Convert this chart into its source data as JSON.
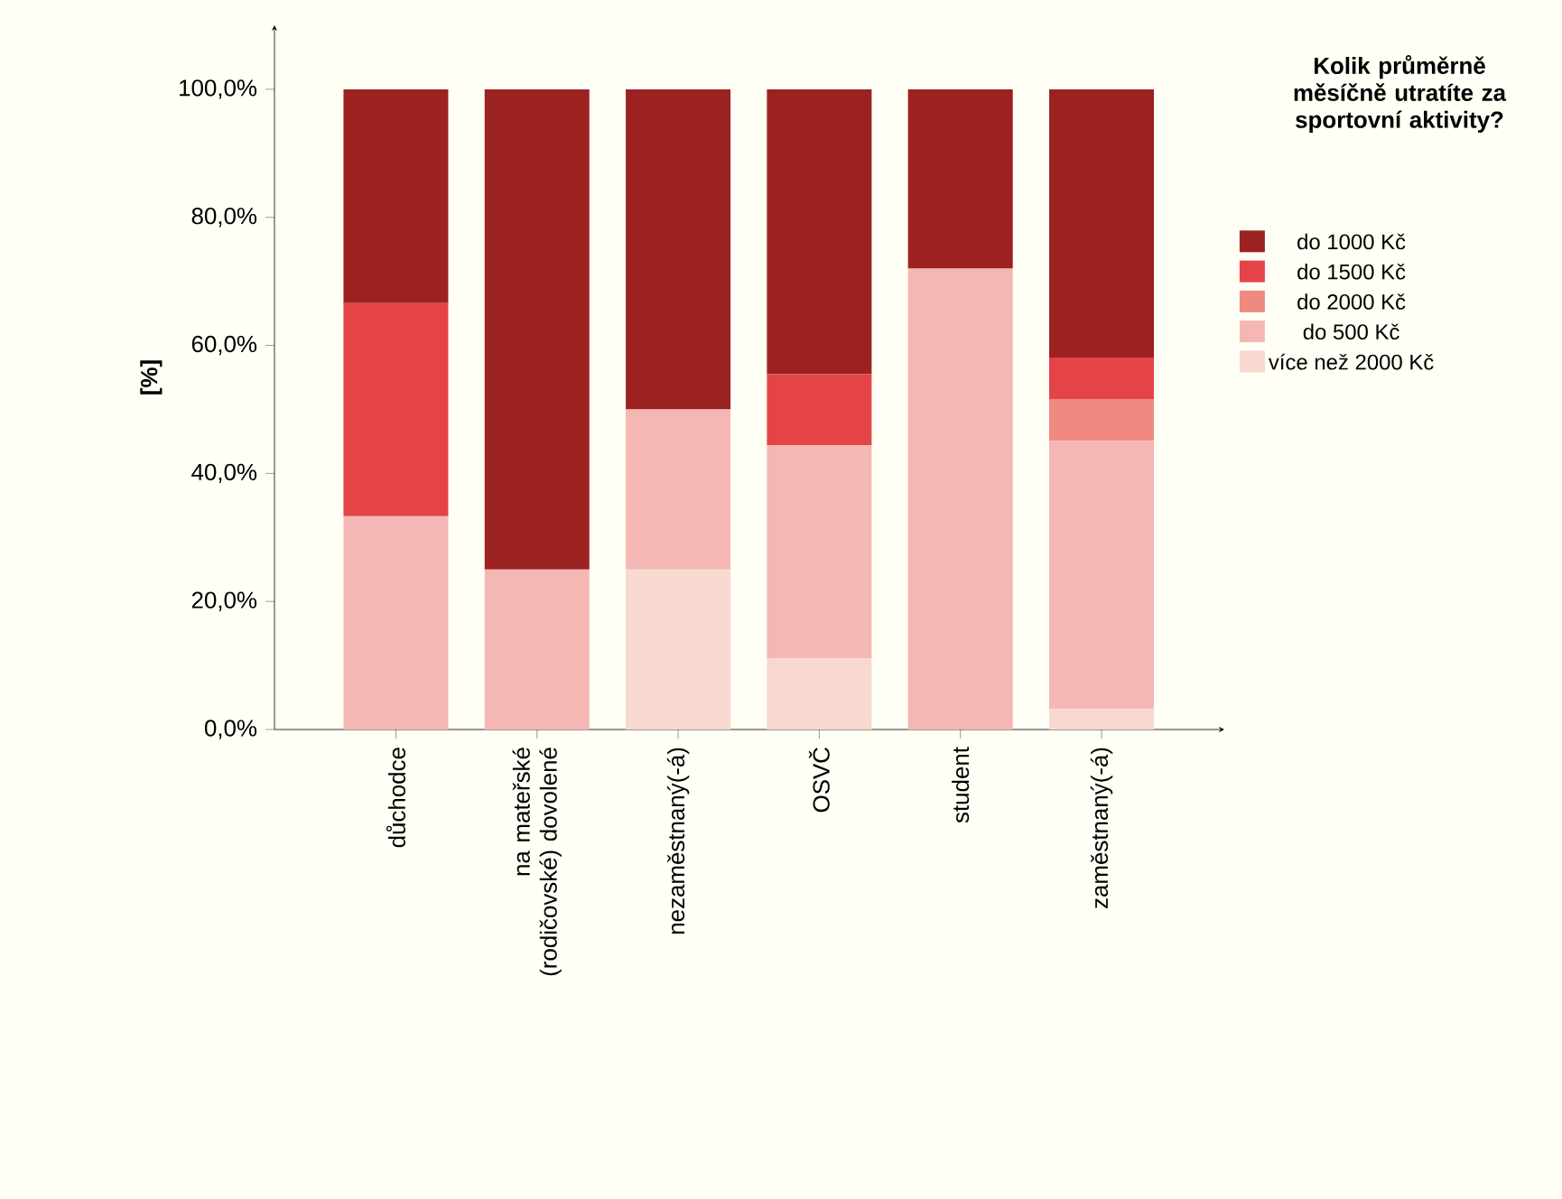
{
  "chart_data": {
    "type": "bar",
    "stacked": true,
    "ylabel": "[%]",
    "legend_title": "Kolik průměrně měsíčně utratíte za sportovní aktivity?",
    "legend": "right",
    "categories": [
      "důchodce",
      "na mateřské (rodičovské) dovolené",
      "nezaměstnaný(-á)",
      "OSVČ",
      "student",
      "zaměstnaný(-á)"
    ],
    "series": [
      {
        "name": "více než 2000 Kč",
        "color": "#f7d9d0",
        "values": [
          0,
          0,
          25,
          11.1,
          0,
          3.2
        ]
      },
      {
        "name": "do 500 Kč",
        "color": "#f5b7b4",
        "values": [
          33.3,
          25,
          25,
          33.3,
          72,
          41.9
        ]
      },
      {
        "name": "do 2000 Kč",
        "color": "#ee8a80",
        "values": [
          0,
          0,
          0,
          0,
          0,
          6.5
        ]
      },
      {
        "name": "do 1500 Kč",
        "color": "#e44447",
        "values": [
          33.3,
          0,
          0,
          11.1,
          0,
          6.5
        ]
      },
      {
        "name": "do 1000 Kč",
        "color": "#9b2220",
        "values": [
          33.4,
          75,
          50,
          44.5,
          28,
          41.9
        ]
      }
    ],
    "ylim": [
      0,
      110
    ],
    "yticks": [
      {
        "value": 0,
        "label": "0,0%"
      },
      {
        "value": 20,
        "label": "20,0%"
      },
      {
        "value": 40,
        "label": "40,0%"
      },
      {
        "value": 60,
        "label": "60,0%"
      },
      {
        "value": 80,
        "label": "80,0%"
      },
      {
        "value": 100,
        "label": "100,0%"
      }
    ]
  }
}
